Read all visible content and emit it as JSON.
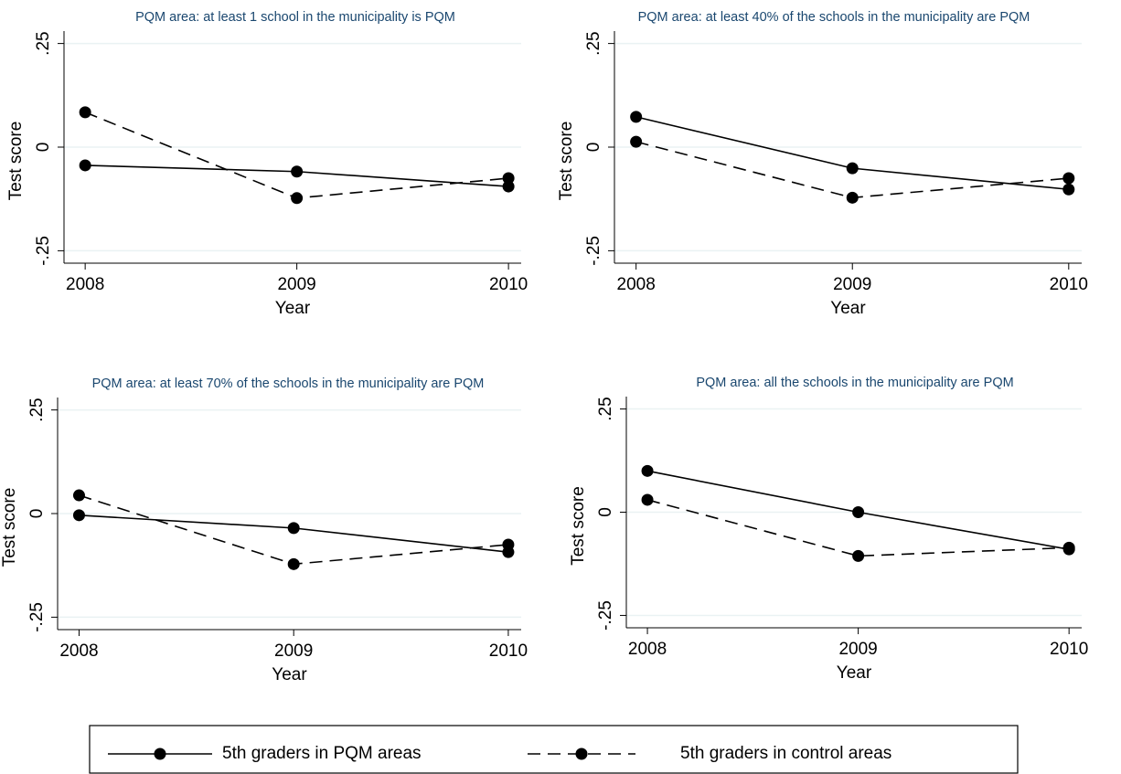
{
  "chart_data": [
    {
      "type": "line",
      "title": "PQM area: at least 1 school in the municipality is PQM",
      "xlabel": "Year",
      "ylabel": "Test score",
      "x": [
        2008,
        2009,
        2010
      ],
      "xlim": [
        2007.9,
        2010.06
      ],
      "xticks": [
        2008,
        2009,
        2010
      ],
      "ylim": [
        -0.28,
        0.28
      ],
      "yticks": [
        {
          "value": -0.25,
          "label": "-.25"
        },
        0,
        {
          "value": 0.25,
          "label": ".25"
        }
      ],
      "grid": true,
      "series": [
        {
          "color": "#000000",
          "dashed": false,
          "values": [
            -0.044,
            -0.059,
            -0.095
          ]
        },
        {
          "color": "#000000",
          "dashed": true,
          "values": [
            0.084,
            -0.123,
            -0.075
          ]
        }
      ]
    },
    {
      "type": "line",
      "title": "PQM area: at least 40% of the schools in the municipality are PQM",
      "xlabel": "Year",
      "ylabel": "Test score",
      "x": [
        2008,
        2009,
        2010
      ],
      "xlim": [
        2007.9,
        2010.06
      ],
      "xticks": [
        2008,
        2009,
        2010
      ],
      "ylim": [
        -0.28,
        0.28
      ],
      "yticks": [
        {
          "value": -0.25,
          "label": "-.25"
        },
        0,
        {
          "value": 0.25,
          "label": ".25"
        }
      ],
      "grid": true,
      "series": [
        {
          "color": "#000000",
          "dashed": false,
          "values": [
            0.073,
            -0.051,
            -0.102
          ]
        },
        {
          "color": "#000000",
          "dashed": true,
          "values": [
            0.013,
            -0.122,
            -0.075
          ]
        }
      ]
    },
    {
      "type": "line",
      "title": "PQM area: at least 70% of the schools in the municipality are PQM",
      "xlabel": "Year",
      "ylabel": "Test score",
      "x": [
        2008,
        2009,
        2010
      ],
      "xlim": [
        2007.9,
        2010.06
      ],
      "xticks": [
        2008,
        2009,
        2010
      ],
      "ylim": [
        -0.28,
        0.28
      ],
      "yticks": [
        {
          "value": -0.25,
          "label": "-.25"
        },
        0,
        {
          "value": 0.25,
          "label": ".25"
        }
      ],
      "grid": true,
      "series": [
        {
          "color": "#000000",
          "dashed": false,
          "values": [
            -0.004,
            -0.035,
            -0.093
          ]
        },
        {
          "color": "#000000",
          "dashed": true,
          "values": [
            0.044,
            -0.122,
            -0.075
          ]
        }
      ]
    },
    {
      "type": "line",
      "title": "PQM area: all the schools in the municipality are PQM",
      "xlabel": "Year",
      "ylabel": "Test score",
      "x": [
        2008,
        2009,
        2010
      ],
      "xlim": [
        2007.9,
        2010.06
      ],
      "xticks": [
        2008,
        2009,
        2010
      ],
      "ylim": [
        -0.28,
        0.28
      ],
      "yticks": [
        {
          "value": -0.25,
          "label": "-.25"
        },
        0,
        {
          "value": 0.25,
          "label": ".25"
        }
      ],
      "grid": true,
      "series": [
        {
          "color": "#000000",
          "dashed": false,
          "values": [
            0.1,
            0,
            -0.09
          ]
        },
        {
          "color": "#000000",
          "dashed": true,
          "values": [
            0.03,
            -0.106,
            -0.086
          ]
        }
      ]
    }
  ],
  "legend": {
    "position": "bottom",
    "entries": [
      {
        "name": "5th graders in PQM areas",
        "dashed": false
      },
      {
        "name": "5th graders in control areas",
        "dashed": true
      }
    ]
  }
}
